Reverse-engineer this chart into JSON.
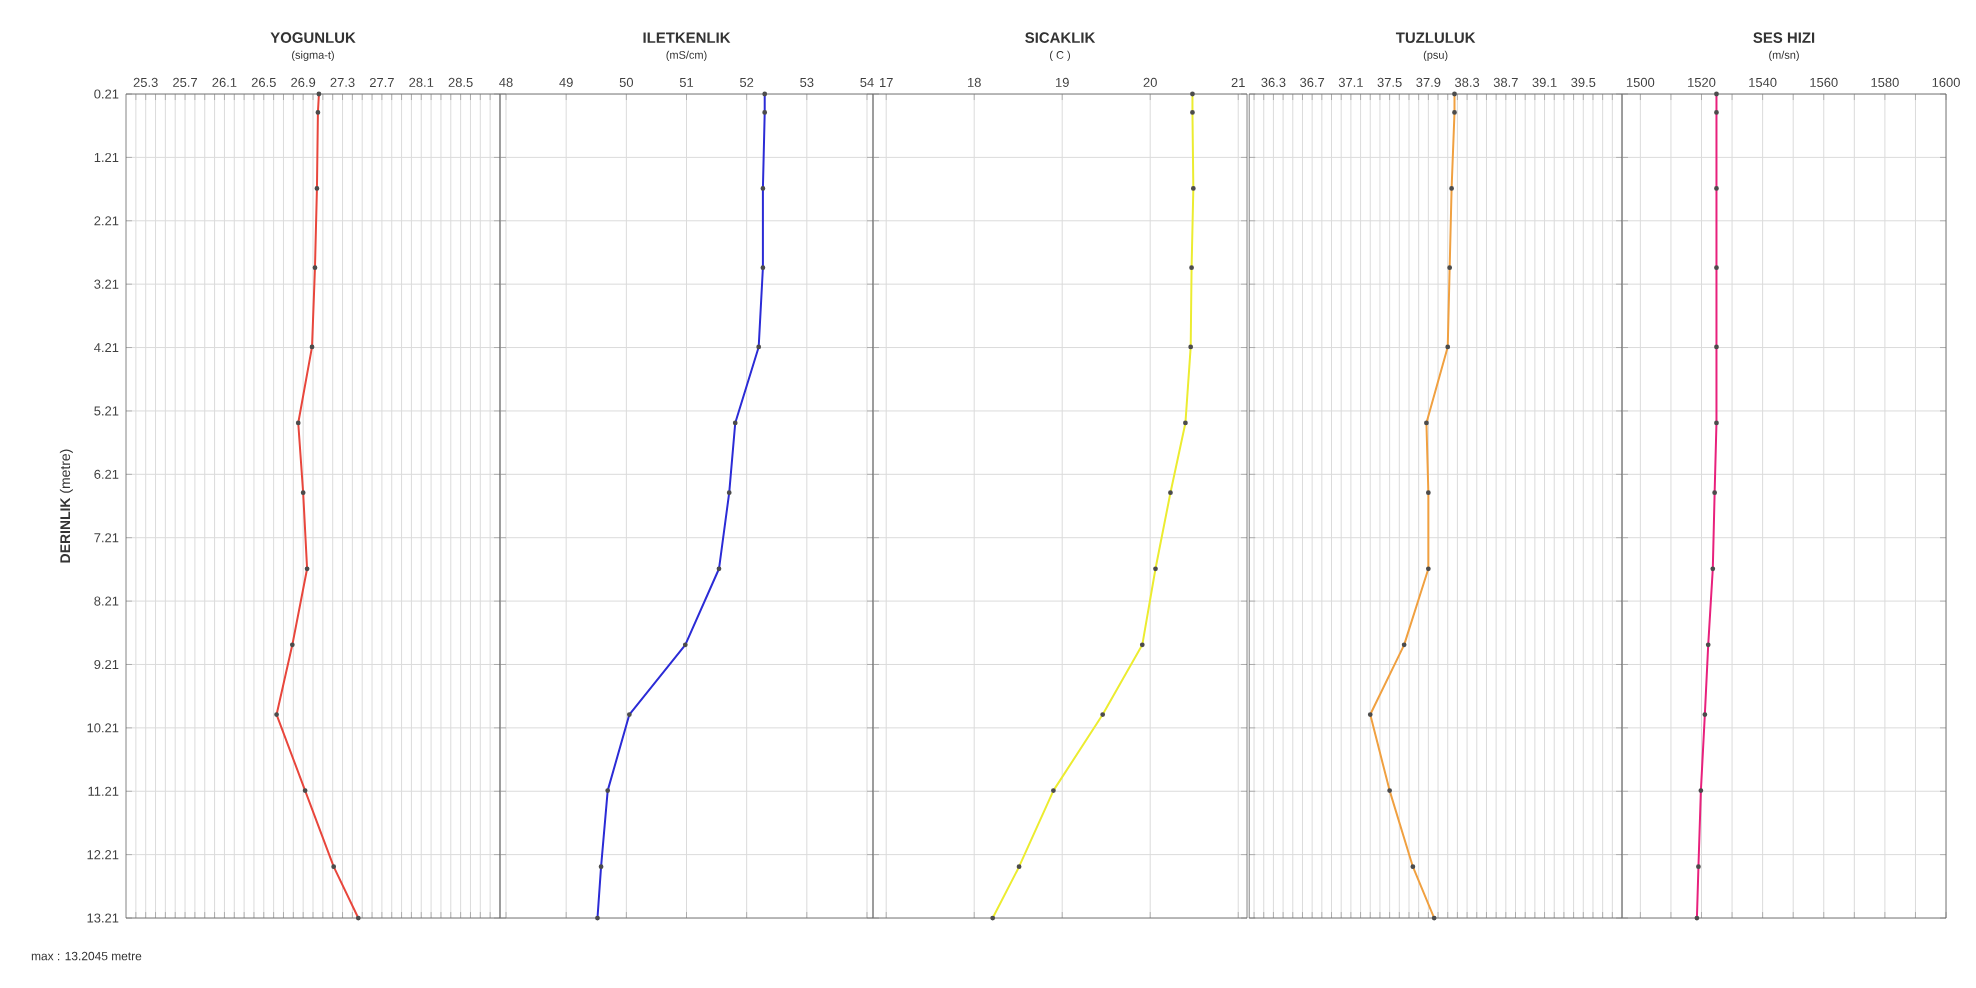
{
  "chart_data": [
    {
      "type": "line",
      "title": "YOGUNLUK",
      "subtitle": "(sigma-t)",
      "ylabel": "**DERINLIK** (metre)",
      "annotations": [
        "max : 13.2045 metre"
      ],
      "color": "#e8463c",
      "marker": "circle",
      "grid": true,
      "x": [
        27.06,
        27.05,
        27.04,
        27.02,
        26.99,
        26.85,
        26.9,
        26.94,
        26.79,
        26.63,
        26.92,
        27.21,
        27.46
      ],
      "values": [
        0.21,
        0.5,
        1.7,
        2.95,
        4.2,
        5.4,
        6.5,
        7.7,
        8.9,
        10.0,
        11.2,
        12.4,
        13.21
      ],
      "xlim": [
        25.1,
        28.9
      ],
      "xticks": [
        {
          "value": 25.2,
          "label": null
        },
        25.3,
        {
          "value": 25.4,
          "label": null
        },
        {
          "value": 25.5,
          "label": null
        },
        {
          "value": 25.6,
          "label": null
        },
        25.7,
        {
          "value": 25.8,
          "label": null
        },
        {
          "value": 25.9,
          "label": null
        },
        {
          "value": 26.0,
          "label": null
        },
        26.1,
        {
          "value": 26.2,
          "label": null
        },
        {
          "value": 26.3,
          "label": null
        },
        {
          "value": 26.4,
          "label": null
        },
        26.5,
        {
          "value": 26.6,
          "label": null
        },
        {
          "value": 26.7,
          "label": null
        },
        {
          "value": 26.8,
          "label": null
        },
        26.9,
        {
          "value": 27.0,
          "label": null
        },
        {
          "value": 27.1,
          "label": null
        },
        {
          "value": 27.2,
          "label": null
        },
        27.3,
        {
          "value": 27.4,
          "label": null
        },
        {
          "value": 27.5,
          "label": null
        },
        {
          "value": 27.6,
          "label": null
        },
        27.7,
        {
          "value": 27.8,
          "label": null
        },
        {
          "value": 27.9,
          "label": null
        },
        {
          "value": 28.0,
          "label": null
        },
        28.1,
        {
          "value": 28.2,
          "label": null
        },
        {
          "value": 28.3,
          "label": null
        },
        {
          "value": 28.4,
          "label": null
        },
        28.5,
        {
          "value": 28.6,
          "label": null
        },
        {
          "value": 28.7,
          "label": null
        },
        {
          "value": 28.8,
          "label": null
        }
      ],
      "ylim": [
        13.21,
        0.21
      ],
      "yticks": [
        0.21,
        1.21,
        2.21,
        3.21,
        4.21,
        5.21,
        6.21,
        7.21,
        8.21,
        9.21,
        10.21,
        11.21,
        12.21,
        13.21
      ]
    },
    {
      "type": "line",
      "title": "ILETKENLIK",
      "subtitle": "(mS/cm)",
      "color": "#2b2bd6",
      "marker": "circle",
      "grid": true,
      "tick_labels": "x",
      "x": [
        52.3,
        52.3,
        52.27,
        52.27,
        52.2,
        51.81,
        51.71,
        51.54,
        50.98,
        50.05,
        49.69,
        49.58,
        49.52
      ],
      "values": [
        0.21,
        0.5,
        1.7,
        2.95,
        4.2,
        5.4,
        6.5,
        7.7,
        8.9,
        10.0,
        11.2,
        12.4,
        13.21
      ],
      "xlim": [
        47.9,
        54.1
      ],
      "xticks": [
        48,
        49,
        50,
        51,
        52,
        53,
        54
      ],
      "ylim": [
        13.21,
        0.21
      ],
      "yticks": [
        0.21,
        1.21,
        2.21,
        3.21,
        4.21,
        5.21,
        6.21,
        7.21,
        8.21,
        9.21,
        10.21,
        11.21,
        12.21,
        13.21
      ]
    },
    {
      "type": "line",
      "title": "SICAKLIK",
      "subtitle": "( C )",
      "color": "#ecec30",
      "marker": "circle",
      "grid": true,
      "tick_labels": "x",
      "x": [
        20.48,
        20.48,
        20.49,
        20.47,
        20.46,
        20.4,
        20.23,
        20.06,
        19.91,
        19.46,
        18.9,
        18.51,
        18.21
      ],
      "values": [
        0.21,
        0.5,
        1.7,
        2.95,
        4.2,
        5.4,
        6.5,
        7.7,
        8.9,
        10.0,
        11.2,
        12.4,
        13.21
      ],
      "xlim": [
        16.85,
        21.1
      ],
      "xticks": [
        17,
        18,
        19,
        20,
        21
      ],
      "ylim": [
        13.21,
        0.21
      ],
      "yticks": [
        0.21,
        1.21,
        2.21,
        3.21,
        4.21,
        5.21,
        6.21,
        7.21,
        8.21,
        9.21,
        10.21,
        11.21,
        12.21,
        13.21
      ]
    },
    {
      "type": "line",
      "title": "TUZLULUK",
      "subtitle": "(psu)",
      "color": "#f0a040",
      "marker": "circle",
      "grid": true,
      "tick_labels": "x",
      "x": [
        38.17,
        38.17,
        38.14,
        38.12,
        38.1,
        37.88,
        37.9,
        37.9,
        37.65,
        37.3,
        37.5,
        37.74,
        37.96
      ],
      "values": [
        0.21,
        0.5,
        1.7,
        2.95,
        4.2,
        5.4,
        6.5,
        7.7,
        8.9,
        10.0,
        11.2,
        12.4,
        13.21
      ],
      "xlim": [
        36.05,
        39.9
      ],
      "xticks": [
        {
          "value": 36.1,
          "label": null
        },
        {
          "value": 36.2,
          "label": null
        },
        36.3,
        {
          "value": 36.4,
          "label": null
        },
        {
          "value": 36.5,
          "label": null
        },
        {
          "value": 36.6,
          "label": null
        },
        36.7,
        {
          "value": 36.8,
          "label": null
        },
        {
          "value": 36.9,
          "label": null
        },
        {
          "value": 37.0,
          "label": null
        },
        37.1,
        {
          "value": 37.2,
          "label": null
        },
        {
          "value": 37.3,
          "label": null
        },
        {
          "value": 37.4,
          "label": null
        },
        37.5,
        {
          "value": 37.6,
          "label": null
        },
        {
          "value": 37.7,
          "label": null
        },
        {
          "value": 37.8,
          "label": null
        },
        37.9,
        {
          "value": 38.0,
          "label": null
        },
        {
          "value": 38.1,
          "label": null
        },
        {
          "value": 38.2,
          "label": null
        },
        38.3,
        {
          "value": 38.4,
          "label": null
        },
        {
          "value": 38.5,
          "label": null
        },
        {
          "value": 38.6,
          "label": null
        },
        38.7,
        {
          "value": 38.8,
          "label": null
        },
        {
          "value": 38.9,
          "label": null
        },
        {
          "value": 39.0,
          "label": null
        },
        39.1,
        {
          "value": 39.2,
          "label": null
        },
        {
          "value": 39.3,
          "label": null
        },
        {
          "value": 39.4,
          "label": null
        },
        39.5,
        {
          "value": 39.6,
          "label": null
        },
        {
          "value": 39.7,
          "label": null
        },
        {
          "value": 39.8,
          "label": null
        }
      ],
      "ylim": [
        13.21,
        0.21
      ],
      "yticks": [
        0.21,
        1.21,
        2.21,
        3.21,
        4.21,
        5.21,
        6.21,
        7.21,
        8.21,
        9.21,
        10.21,
        11.21,
        12.21,
        13.21
      ]
    },
    {
      "type": "line",
      "title": "SES HIZI",
      "subtitle": "(m/sn)",
      "color": "#e8207c",
      "marker": "circle",
      "grid": true,
      "tick_labels": "x",
      "x": [
        1524.9,
        1524.9,
        1524.9,
        1524.9,
        1524.9,
        1524.9,
        1524.3,
        1523.7,
        1522.2,
        1521.1,
        1519.8,
        1519.0,
        1518.5
      ],
      "values": [
        0.21,
        0.5,
        1.7,
        2.95,
        4.2,
        5.4,
        6.5,
        7.7,
        8.9,
        10.0,
        11.2,
        12.4,
        13.21
      ],
      "xlim": [
        1494,
        1600
      ],
      "xticks": [
        1500,
        {
          "value": 1510,
          "label": null
        },
        1520,
        {
          "value": 1530,
          "label": null
        },
        1540,
        {
          "value": 1550,
          "label": null
        },
        1560,
        {
          "value": 1570,
          "label": null
        },
        1580,
        {
          "value": 1590,
          "label": null
        },
        1600
      ],
      "ylim": [
        13.21,
        0.21
      ],
      "yticks": [
        0.21,
        1.21,
        2.21,
        3.21,
        4.21,
        5.21,
        6.21,
        7.21,
        8.21,
        9.21,
        10.21,
        11.21,
        12.21,
        13.21
      ]
    }
  ]
}
